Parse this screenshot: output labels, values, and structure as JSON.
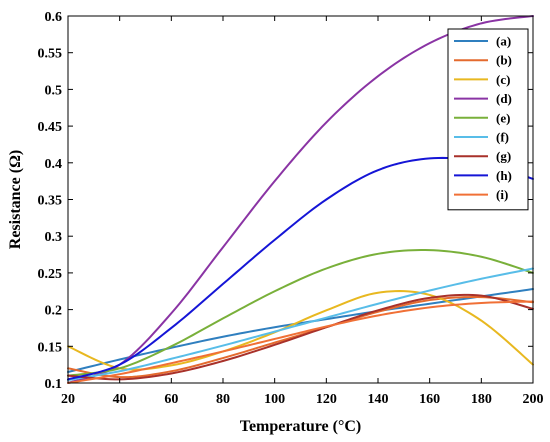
{
  "chart_data": {
    "type": "line",
    "title": "",
    "xlabel": "Temperature (°C)",
    "ylabel": "Resistance (Ω)",
    "xlim": [
      20,
      200
    ],
    "ylim": [
      0.1,
      0.6
    ],
    "x_ticks": [
      20,
      40,
      60,
      80,
      100,
      120,
      140,
      160,
      180,
      200
    ],
    "y_ticks": [
      0.1,
      0.15,
      0.2,
      0.25,
      0.3,
      0.35,
      0.4,
      0.45,
      0.5,
      0.55,
      0.6
    ],
    "y_tick_labels": [
      "0.1",
      "0.15",
      "0.2",
      "0.25",
      "0.3",
      "0.35",
      "0.4",
      "0.45",
      "0.5",
      "0.55",
      "0.6"
    ],
    "grid": false,
    "legend_position": "top-right",
    "x": [
      20,
      40,
      60,
      80,
      100,
      120,
      140,
      160,
      180,
      200
    ],
    "series": [
      {
        "name": "(a)",
        "color": "#2f7fbf",
        "values": [
          0.115,
          0.132,
          0.148,
          0.163,
          0.176,
          0.187,
          0.198,
          0.208,
          0.218,
          0.228
        ]
      },
      {
        "name": "(b)",
        "color": "#e46a2e",
        "values": [
          0.12,
          0.108,
          0.116,
          0.134,
          0.155,
          0.176,
          0.197,
          0.213,
          0.217,
          0.21
        ]
      },
      {
        "name": "(c)",
        "color": "#e8b820",
        "values": [
          0.15,
          0.12,
          0.124,
          0.143,
          0.169,
          0.199,
          0.223,
          0.22,
          0.185,
          0.125
        ]
      },
      {
        "name": "(d)",
        "color": "#8a34a4",
        "values": [
          0.1,
          0.125,
          0.195,
          0.285,
          0.375,
          0.455,
          0.518,
          0.563,
          0.59,
          0.6
        ]
      },
      {
        "name": "(e)",
        "color": "#79b03a",
        "values": [
          0.11,
          0.12,
          0.15,
          0.188,
          0.225,
          0.256,
          0.276,
          0.281,
          0.272,
          0.25
        ]
      },
      {
        "name": "(f)",
        "color": "#58bde8",
        "values": [
          0.104,
          0.116,
          0.133,
          0.151,
          0.17,
          0.189,
          0.208,
          0.226,
          0.242,
          0.256
        ]
      },
      {
        "name": "(g)",
        "color": "#a8312a",
        "values": [
          0.11,
          0.105,
          0.113,
          0.13,
          0.152,
          0.176,
          0.199,
          0.216,
          0.219,
          0.201
        ]
      },
      {
        "name": "(h)",
        "color": "#1515d6",
        "values": [
          0.105,
          0.125,
          0.175,
          0.235,
          0.295,
          0.35,
          0.39,
          0.406,
          0.401,
          0.378
        ]
      },
      {
        "name": "(i)",
        "color": "#f07036",
        "values": [
          0.1,
          0.112,
          0.127,
          0.143,
          0.16,
          0.177,
          0.192,
          0.203,
          0.209,
          0.211
        ]
      }
    ]
  }
}
